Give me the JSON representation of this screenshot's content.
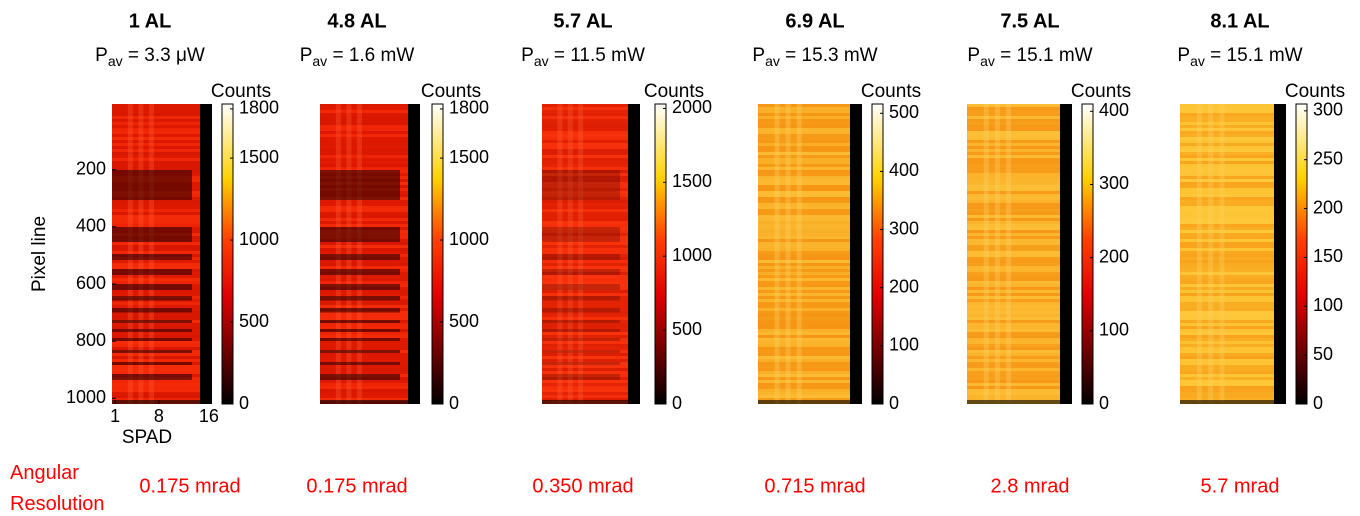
{
  "footer_label": "Angular Resolution",
  "chart_data": [
    {
      "type": "heatmap",
      "title": "1 AL",
      "subtitle": {
        "symbol": "P",
        "subscript": "av",
        "text": " = 3.3 μW"
      },
      "color": "#e81c00",
      "y_label": "Pixel line",
      "ylim": [
        -30,
        1020
      ],
      "yticks": [
        200,
        400,
        600,
        800,
        1000
      ],
      "x_label": "SPAD",
      "xlim": [
        0.5,
        16.5
      ],
      "xticks": [
        1,
        8,
        16
      ],
      "colorbar": {
        "label": "Counts",
        "lim": [
          0,
          1830
        ],
        "ticks": [
          0,
          500,
          1000,
          1500,
          1800
        ]
      },
      "annotation": "0.175 mrad"
    },
    {
      "type": "heatmap",
      "title": "4.8 AL",
      "subtitle": {
        "symbol": "P",
        "subscript": "av",
        "text": " = 1.6 mW"
      },
      "color": "#e81c00",
      "colorbar": {
        "label": "Counts",
        "lim": [
          0,
          1830
        ],
        "ticks": [
          0,
          500,
          1000,
          1500,
          1800
        ]
      },
      "annotation": "0.175 mrad"
    },
    {
      "type": "heatmap",
      "title": "5.7 AL",
      "subtitle": {
        "symbol": "P",
        "subscript": "av",
        "text": " = 11.5 mW"
      },
      "color": "#f02a08",
      "colorbar": {
        "label": "Counts",
        "lim": [
          0,
          2030
        ],
        "ticks": [
          0,
          500,
          1000,
          1500,
          2000
        ]
      },
      "annotation": "0.350 mrad"
    },
    {
      "type": "heatmap",
      "title": "6.9 AL",
      "subtitle": {
        "symbol": "P",
        "subscript": "av",
        "text": " = 15.3 mW"
      },
      "color": "#f7a21a",
      "colorbar": {
        "label": "Counts",
        "lim": [
          0,
          516
        ],
        "ticks": [
          0,
          100,
          200,
          300,
          400,
          500
        ]
      },
      "annotation": "0.715 mrad"
    },
    {
      "type": "heatmap",
      "title": "7.5 AL",
      "subtitle": {
        "symbol": "P",
        "subscript": "av",
        "text": " = 15.1 mW"
      },
      "color": "#f9a820",
      "colorbar": {
        "label": "Counts",
        "lim": [
          0,
          410
        ],
        "ticks": [
          0,
          100,
          200,
          300,
          400
        ]
      },
      "annotation": "2.8 mrad"
    },
    {
      "type": "heatmap",
      "title": "8.1 AL",
      "subtitle": {
        "symbol": "P",
        "subscript": "av",
        "text": " = 15.1 mW"
      },
      "color": "#fbbd2a",
      "colorbar": {
        "label": "Counts",
        "lim": [
          0,
          307
        ],
        "ticks": [
          0,
          50,
          100,
          150,
          200,
          250,
          300
        ]
      },
      "annotation": "5.7 mrad"
    }
  ]
}
